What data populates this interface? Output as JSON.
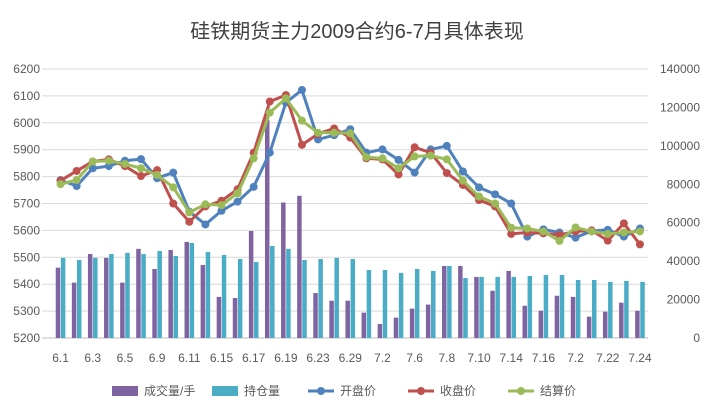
{
  "chart_data": {
    "type": "bar+line",
    "title": "硅铁期货主力2009合约6-7月具体表现",
    "categories": [
      "6.1",
      "6.2",
      "6.3",
      "6.4",
      "6.5",
      "6.8",
      "6.9",
      "6.10",
      "6.11",
      "6.12",
      "6.15",
      "6.16",
      "6.17",
      "6.18",
      "6.19",
      "6.22",
      "6.23",
      "6.24",
      "6.29",
      "6.30",
      "7.2",
      "7.3",
      "7.6",
      "7.7",
      "7.8",
      "7.9",
      "7.10",
      "7.13",
      "7.14",
      "7.15",
      "7.16",
      "7.17",
      "7.20",
      "7.21",
      "7.22",
      "7.23",
      "7.24"
    ],
    "tick_labels": [
      "6.1",
      "6.3",
      "6.5",
      "6.9",
      "6.11",
      "6.15",
      "6.17",
      "6.19",
      "6.23",
      "6.29",
      "7.2",
      "7.6",
      "7.8",
      "7.10",
      "7.14",
      "7.16",
      "7.2",
      "7.22",
      "7.24"
    ],
    "left_axis": {
      "ylim": [
        5200,
        6200
      ],
      "ticks": [
        "5200",
        "5300",
        "5400",
        "5500",
        "5600",
        "5700",
        "5800",
        "5900",
        "6000",
        "6100",
        "6200"
      ]
    },
    "right_axis": {
      "ylim": [
        0,
        140000
      ],
      "ticks": [
        "0",
        "20000",
        "40000",
        "60000",
        "80000",
        "100000",
        "120000",
        "140000"
      ]
    },
    "legend_position": "bottom",
    "series": [
      {
        "name": "成交量/手",
        "type": "bar",
        "axis": "right",
        "color": "#8064a2",
        "values": [
          36600,
          28800,
          43700,
          41700,
          28800,
          46400,
          35900,
          45800,
          50000,
          38000,
          21400,
          20800,
          55700,
          113500,
          70500,
          74000,
          23400,
          19400,
          19400,
          13200,
          7300,
          10600,
          15300,
          17400,
          37500,
          37500,
          31800,
          24600,
          34900,
          16800,
          14200,
          22000,
          21400,
          11100,
          13700,
          18400,
          14200
        ]
      },
      {
        "name": "持仓量",
        "type": "bar",
        "axis": "right",
        "color": "#4bacc6",
        "values": [
          41700,
          40600,
          41700,
          43700,
          44300,
          43700,
          45300,
          42700,
          49500,
          44800,
          43200,
          41100,
          39600,
          47900,
          46400,
          40600,
          41100,
          41700,
          41100,
          35400,
          35400,
          33900,
          35900,
          34900,
          37500,
          31200,
          31800,
          31800,
          31800,
          32300,
          32800,
          32800,
          30200,
          30200,
          29200,
          29700,
          29200
        ]
      },
      {
        "name": "开盘价",
        "type": "line",
        "axis": "left",
        "color": "#4f81bd",
        "values": [
          5787,
          5765,
          5831,
          5839,
          5859,
          5865,
          5794,
          5815,
          5670,
          5622,
          5673,
          5707,
          5762,
          5889,
          6075,
          6122,
          5938,
          5954,
          5976,
          5889,
          5901,
          5862,
          5815,
          5901,
          5914,
          5819,
          5760,
          5734,
          5700,
          5577,
          5604,
          5592,
          5573,
          5598,
          5602,
          5577,
          5607
        ]
      },
      {
        "name": "收盘价",
        "type": "line",
        "axis": "left",
        "color": "#c0504d",
        "values": [
          5785,
          5821,
          5856,
          5864,
          5839,
          5802,
          5824,
          5700,
          5632,
          5689,
          5710,
          5753,
          5889,
          6079,
          6103,
          5918,
          5959,
          5979,
          5945,
          5868,
          5864,
          5808,
          5909,
          5889,
          5813,
          5769,
          5713,
          5689,
          5587,
          5592,
          5589,
          5583,
          5596,
          5600,
          5562,
          5626,
          5548
        ]
      },
      {
        "name": "结算价",
        "type": "line",
        "axis": "left",
        "color": "#9bbb59",
        "values": [
          5772,
          5787,
          5856,
          5859,
          5847,
          5831,
          5806,
          5760,
          5667,
          5697,
          5694,
          5738,
          5868,
          6038,
          6091,
          6008,
          5963,
          5963,
          5961,
          5872,
          5868,
          5831,
          5875,
          5878,
          5864,
          5785,
          5726,
          5700,
          5610,
          5607,
          5596,
          5561,
          5611,
          5596,
          5587,
          5592,
          5596
        ]
      }
    ]
  }
}
